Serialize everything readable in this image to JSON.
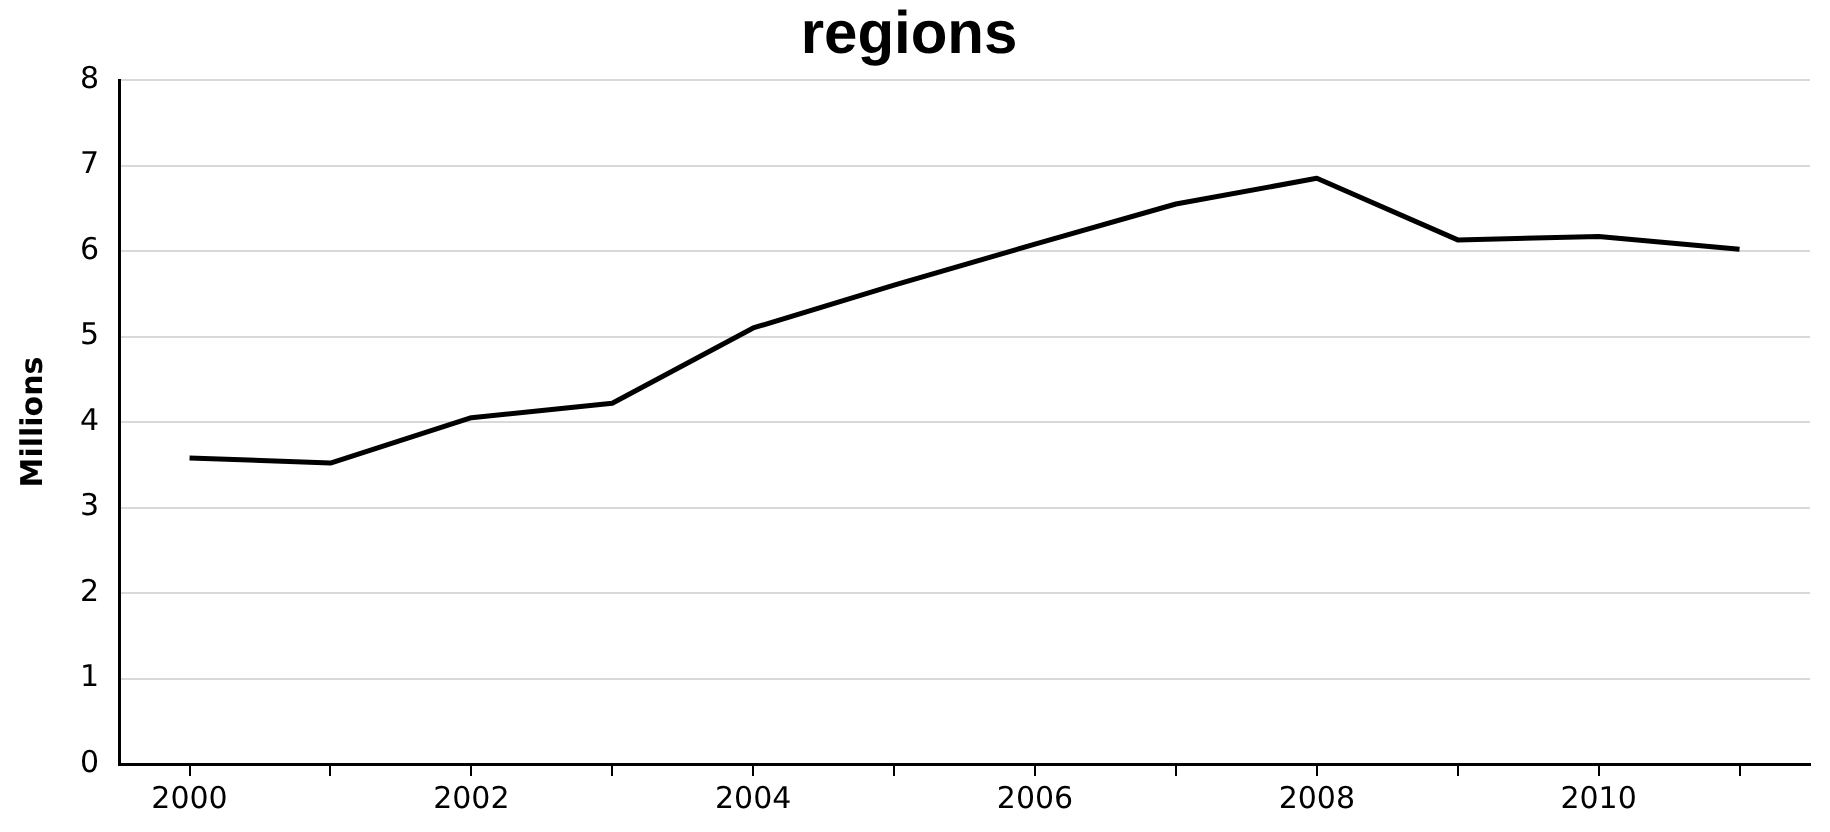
{
  "chart_data": {
    "type": "line",
    "title": "regions",
    "ylabel": "Millions",
    "categories": [
      "2000",
      null,
      "2002",
      null,
      "2004",
      null,
      "2006",
      null,
      "2008",
      null,
      "2010",
      null
    ],
    "series": [
      {
        "color": "#000000",
        "values": [
          3.58,
          3.52,
          4.05,
          4.22,
          5.1,
          5.6,
          6.08,
          6.55,
          6.85,
          6.13,
          6.17,
          6.02
        ]
      }
    ],
    "ylim": [
      0,
      8
    ],
    "yticks": [
      0,
      1,
      2,
      3,
      4,
      5,
      6,
      7,
      8
    ],
    "grid": "y",
    "legend": false,
    "marker": "none",
    "line_style": "solid"
  }
}
